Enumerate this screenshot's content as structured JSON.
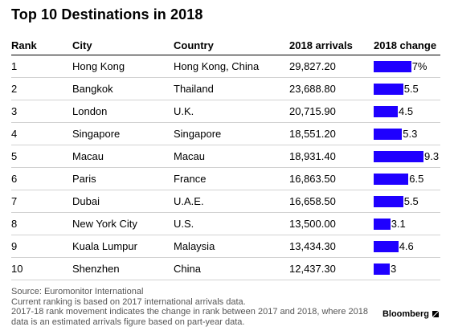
{
  "chart_data": {
    "type": "table",
    "title": "Top 10 Destinations in 2018",
    "columns": [
      "Rank",
      "City",
      "Country",
      "2018 arrivals",
      "2018 change"
    ],
    "rows": [
      {
        "rank": "1",
        "city": "Hong Kong",
        "country": "Hong Kong, China",
        "arrivals": "29,827.20",
        "change": 7,
        "change_label": "7%"
      },
      {
        "rank": "2",
        "city": "Bangkok",
        "country": "Thailand",
        "arrivals": "23,688.80",
        "change": 5.5,
        "change_label": "5.5"
      },
      {
        "rank": "3",
        "city": "London",
        "country": "U.K.",
        "arrivals": "20,715.90",
        "change": 4.5,
        "change_label": "4.5"
      },
      {
        "rank": "4",
        "city": "Singapore",
        "country": "Singapore",
        "arrivals": "18,551.20",
        "change": 5.3,
        "change_label": "5.3"
      },
      {
        "rank": "5",
        "city": "Macau",
        "country": "Macau",
        "arrivals": "18,931.40",
        "change": 9.3,
        "change_label": "9.3"
      },
      {
        "rank": "6",
        "city": "Paris",
        "country": "France",
        "arrivals": "16,863.50",
        "change": 6.5,
        "change_label": "6.5"
      },
      {
        "rank": "7",
        "city": "Dubai",
        "country": "U.A.E.",
        "arrivals": "16,658.50",
        "change": 5.5,
        "change_label": "5.5"
      },
      {
        "rank": "8",
        "city": "New York City",
        "country": "U.S.",
        "arrivals": "13,500.00",
        "change": 3.1,
        "change_label": "3.1"
      },
      {
        "rank": "9",
        "city": "Kuala Lumpur",
        "country": "Malaysia",
        "arrivals": "13,434.30",
        "change": 4.6,
        "change_label": "4.6"
      },
      {
        "rank": "10",
        "city": "Shenzhen",
        "country": "China",
        "arrivals": "12,437.30",
        "change": 3,
        "change_label": "3"
      }
    ],
    "bar_color": "#1f00ff",
    "change_max": 9.3
  },
  "notes": [
    "Source: Euromonitor International",
    "Current ranking is based on 2017 international arrivals data.",
    "2017-18 rank movement indicates the change in rank between 2017 and 2018, where 2018",
    "data is an estimated arrivals figure based on part-year data."
  ],
  "brand": "Bloomberg"
}
